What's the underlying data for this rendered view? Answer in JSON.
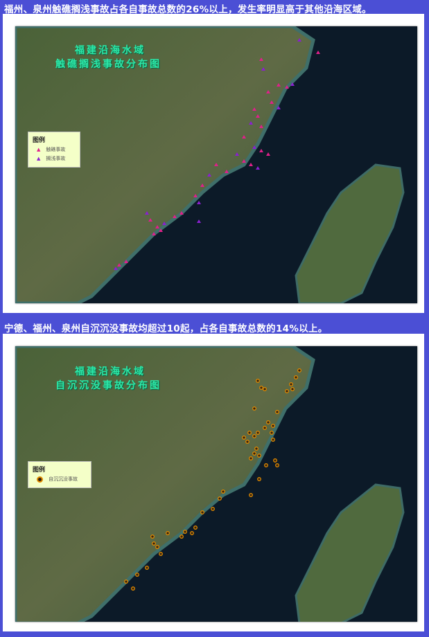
{
  "sections": [
    {
      "heading": "福州、泉州触礁搁浅事故占各自事故总数的26%以上，发生率明显高于其他沿海区域。",
      "map_title_line1": "福建沿海水域",
      "map_title_line2": "触礁搁浅事故分布图",
      "legend": {
        "title": "图例",
        "items": [
          {
            "label": "触礁事故",
            "symbol": "triangle",
            "color": "#e0208a"
          },
          {
            "label": "搁浅事故",
            "symbol": "triangle",
            "color": "#8a20d0"
          }
        ]
      }
    },
    {
      "heading": "宁德、福州、泉州自沉沉没事故均超过10起，占各自事故总数的14%以上。",
      "map_title_line1": "福建沿海水域",
      "map_title_line2": "自沉沉没事故分布图",
      "legend": {
        "title": "图例",
        "items": [
          {
            "label": "自沉沉没事故",
            "symbol": "circle",
            "color": "#e08a00"
          }
        ]
      }
    }
  ],
  "colors": {
    "frame": "#4b4fd5",
    "sea": "#0c1a28",
    "land": "#3f5a35",
    "title": "#2de8a8"
  }
}
